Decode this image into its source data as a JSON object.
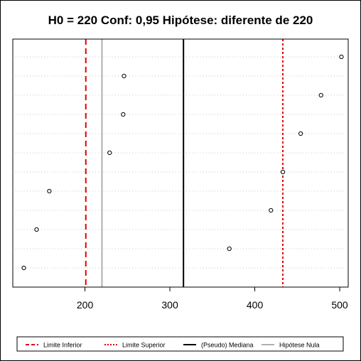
{
  "chart_data": {
    "type": "scatter",
    "title": "H0 = 220 Conf: 0,95 Hipótese: diferente de 220",
    "xlabel": "",
    "ylabel": "",
    "xlim": [
      115,
      510
    ],
    "x_ticks": [
      200,
      300,
      400,
      500
    ],
    "x_tick_labels": [
      "200",
      "300",
      "400",
      "500"
    ],
    "grid": "dotted horizontal per point",
    "points": [
      {
        "row": 1,
        "x": 502
      },
      {
        "row": 2,
        "x": 246
      },
      {
        "row": 3,
        "x": 478
      },
      {
        "row": 4,
        "x": 245
      },
      {
        "row": 5,
        "x": 454
      },
      {
        "row": 6,
        "x": 229
      },
      {
        "row": 7,
        "x": 433
      },
      {
        "row": 8,
        "x": 158
      },
      {
        "row": 9,
        "x": 419
      },
      {
        "row": 10,
        "x": 143
      },
      {
        "row": 11,
        "x": 370
      },
      {
        "row": 12,
        "x": 128
      }
    ],
    "vlines": [
      {
        "key": "limite_inferior",
        "x": 201,
        "color": "#e00000",
        "dash": "8,5",
        "width": 2
      },
      {
        "key": "limite_superior",
        "x": 433,
        "color": "#e00000",
        "dash": "3,3",
        "width": 2
      },
      {
        "key": "mediana",
        "x": 316,
        "color": "#000000",
        "dash": "",
        "width": 2
      },
      {
        "key": "hipotese_nula",
        "x": 220,
        "color": "#b0b0b0",
        "dash": "",
        "width": 2
      }
    ],
    "legend": {
      "placement": "bottom",
      "entries": [
        {
          "key": "limite_inferior",
          "label": "Limite Inferior"
        },
        {
          "key": "limite_superior",
          "label": "Limite Superior"
        },
        {
          "key": "mediana",
          "label": "(Pseudo) Mediana"
        },
        {
          "key": "hipotese_nula",
          "label": "Hipótese Nula"
        }
      ]
    }
  }
}
